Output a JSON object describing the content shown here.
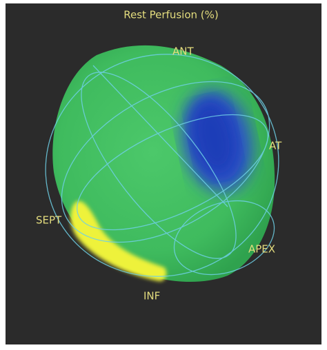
{
  "title": "Rest Perfusion (%)",
  "labels": {
    "anterior": "ANT",
    "lateral": "AT",
    "septal": "SEPT",
    "apex": "APEX",
    "inferior": "INF"
  }
}
